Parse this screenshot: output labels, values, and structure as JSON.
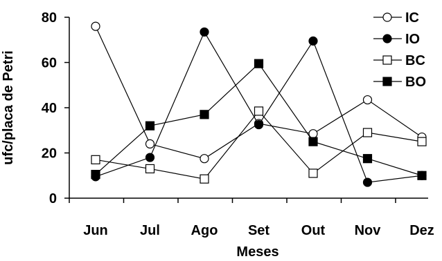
{
  "chart_data": {
    "type": "line",
    "title": "",
    "xlabel": "Meses",
    "ylabel": "ufc/placa de Petri",
    "categories": [
      "Jun",
      "Jul",
      "Ago",
      "Set",
      "Out",
      "Nov",
      "Dez"
    ],
    "ylim": [
      0,
      80
    ],
    "yticks": [
      "0",
      "20",
      "40",
      "60",
      "80"
    ],
    "grid": false,
    "legend_position": "top-right",
    "series": [
      {
        "name": "IC",
        "marker": "open-circle",
        "color": "#000000",
        "values": [
          76,
          24,
          17.5,
          33,
          28.5,
          43.5,
          27
        ]
      },
      {
        "name": "IO",
        "marker": "filled-circle",
        "color": "#000000",
        "values": [
          9.5,
          18,
          73.5,
          32.5,
          69.5,
          7,
          10
        ]
      },
      {
        "name": "BC",
        "marker": "open-square",
        "color": "#000000",
        "values": [
          17,
          13,
          8.5,
          38.5,
          11,
          29,
          25
        ]
      },
      {
        "name": "BO",
        "marker": "filled-square",
        "color": "#000000",
        "values": [
          10.5,
          32,
          37,
          59.5,
          25,
          17.5,
          10
        ]
      }
    ]
  }
}
